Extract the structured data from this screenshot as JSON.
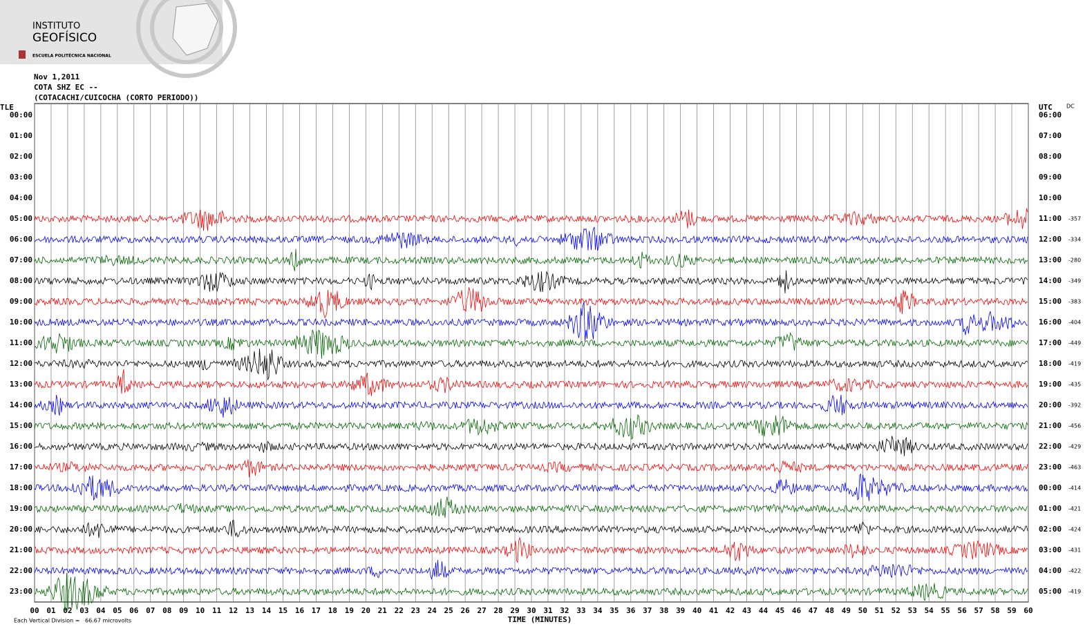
{
  "header": {
    "logo_line1": "INSTITUTO",
    "logo_line2": "GEOFÍSICO",
    "logo_line3": "ESCUELA POLITÉCNICA NACIONAL",
    "date": "Nov 1,2011",
    "station": "COTA SHZ EC --",
    "location": "(COTACACHI/CUICOCHA (CORTO PERIODO))"
  },
  "plot": {
    "left_axis_title": "TLE",
    "right_axis_title": "UTC",
    "dc_label": "DC",
    "left_labels": [
      "00:00",
      "01:00",
      "02:00",
      "03:00",
      "04:00",
      "05:00",
      "06:00",
      "07:00",
      "08:00",
      "09:00",
      "10:00",
      "11:00",
      "12:00",
      "13:00",
      "14:00",
      "15:00",
      "16:00",
      "17:00",
      "18:00",
      "19:00",
      "20:00",
      "21:00",
      "22:00",
      "23:00"
    ],
    "right_labels": [
      "06:00",
      "07:00",
      "08:00",
      "09:00",
      "10:00",
      "11:00",
      "12:00",
      "13:00",
      "14:00",
      "15:00",
      "16:00",
      "17:00",
      "18:00",
      "19:00",
      "20:00",
      "21:00",
      "22:00",
      "23:00",
      "00:00",
      "01:00",
      "02:00",
      "03:00",
      "04:00",
      "05:00"
    ],
    "first_trace_row": 5,
    "offsets": [
      "-357",
      "-334",
      "-280",
      "-349",
      "-383",
      "-404",
      "-449",
      "-419",
      "-435",
      "-392",
      "-456",
      "-429",
      "-463",
      "-414",
      "-421",
      "-424",
      "-431",
      "-422",
      "-419"
    ],
    "trace_colors": [
      "#ff0000",
      "#0000ff",
      "#006600",
      "#000000"
    ],
    "x_labels": [
      "00",
      "01",
      "02",
      "03",
      "04",
      "05",
      "06",
      "07",
      "08",
      "09",
      "10",
      "11",
      "12",
      "13",
      "14",
      "15",
      "16",
      "17",
      "18",
      "19",
      "20",
      "21",
      "22",
      "23",
      "24",
      "25",
      "26",
      "27",
      "28",
      "29",
      "30",
      "31",
      "32",
      "33",
      "34",
      "35",
      "36",
      "37",
      "38",
      "39",
      "40",
      "41",
      "42",
      "43",
      "44",
      "45",
      "46",
      "47",
      "48",
      "49",
      "50",
      "51",
      "52",
      "53",
      "54",
      "55",
      "56",
      "57",
      "58",
      "59",
      "60"
    ],
    "x_axis_title": "TIME (MINUTES)",
    "footnote": "Each Vertical Division =   66.67 microvolts"
  }
}
